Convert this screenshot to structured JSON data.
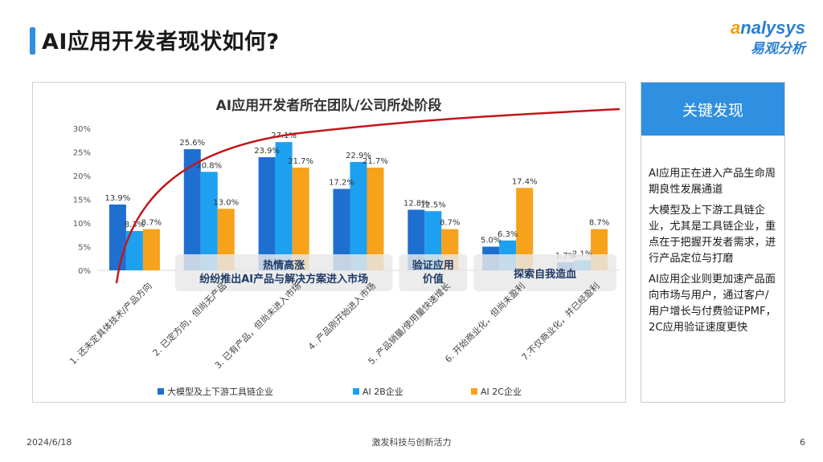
{
  "page": {
    "title": "AI应用开发者现状如何?",
    "logo_en_prefix": "a",
    "logo_en_rest": "nalysys",
    "logo_cn": "易观分析"
  },
  "chart_data": {
    "type": "bar",
    "title": "AI应用开发者所在团队/公司所处阶段",
    "categories": [
      "1. 还未定具体技术/产品方向",
      "2. 已定方向，但尚无产品",
      "3. 已有产品，但尚未进入市场",
      "4. 产品刚开始进入市场",
      "5. 产品销量/使用量快速增长",
      "6. 开始商业化，但尚未盈利",
      "7.不仅商业化，并已经盈利"
    ],
    "series": [
      {
        "name": "大模型及上下游工具链企业",
        "color": "#1f6fd1",
        "values": [
          13.9,
          25.6,
          23.9,
          17.2,
          12.8,
          5.0,
          1.7
        ]
      },
      {
        "name": "AI 2B企业",
        "color": "#1ea0f0",
        "values": [
          8.3,
          20.8,
          27.1,
          22.9,
          12.5,
          6.3,
          2.1
        ]
      },
      {
        "name": "AI 2C企业",
        "color": "#f7a21b",
        "values": [
          8.7,
          13.0,
          21.7,
          21.7,
          8.7,
          17.4,
          8.7
        ]
      }
    ],
    "value_labels": [
      [
        "13.9%",
        "25.6%",
        "23.9%",
        "17.2%",
        "12.8%",
        "5.0%",
        "1.7%"
      ],
      [
        "8.3%",
        "20.8%",
        "27.1%",
        "22.9%",
        "12.5%",
        "6.3%",
        "2.1%"
      ],
      [
        "8.7%",
        "13.0%",
        "21.7%",
        "21.7%",
        "8.7%",
        "17.4%",
        "8.7%"
      ]
    ],
    "yticks": [
      0,
      5,
      10,
      15,
      20,
      25,
      30
    ],
    "ytick_labels": [
      "0%",
      "5%",
      "10%",
      "15%",
      "20%",
      "25%",
      "30%"
    ],
    "ylim": [
      0,
      30
    ],
    "legend_position": "bottom",
    "annotations": {
      "boxes": [
        {
          "lines": [
            "热情高涨",
            "纷纷推出AI产品与解决方案进入市场"
          ],
          "from_category": 1,
          "to_category": 3
        },
        {
          "lines": [
            "验证应用",
            "价值"
          ],
          "from_category": 4,
          "to_category": 4
        },
        {
          "lines": [
            "探索自我造血"
          ],
          "from_category": 5,
          "to_category": 6
        }
      ],
      "trend_curve": "red curve rising from category 1 and flattening toward the upper right"
    }
  },
  "side_panel": {
    "header": "关键发现",
    "points": [
      "AI应用正在进入产品生命周期良性发展通道",
      "大模型及上下游工具链企业，尤其是工具链企业，重点在于把握开发者需求，进行产品定位与打磨",
      "AI应用企业则更加速产品面向市场与用户，通过客户/用户增长与付费验证PMF，2C应用验证速度更快"
    ]
  },
  "footer": {
    "date": "2024/6/18",
    "center": "激发科技与创新活力",
    "page_number": "6"
  },
  "colors": {
    "accent": "#2f8fe0",
    "trend_curve": "#c0171b"
  }
}
